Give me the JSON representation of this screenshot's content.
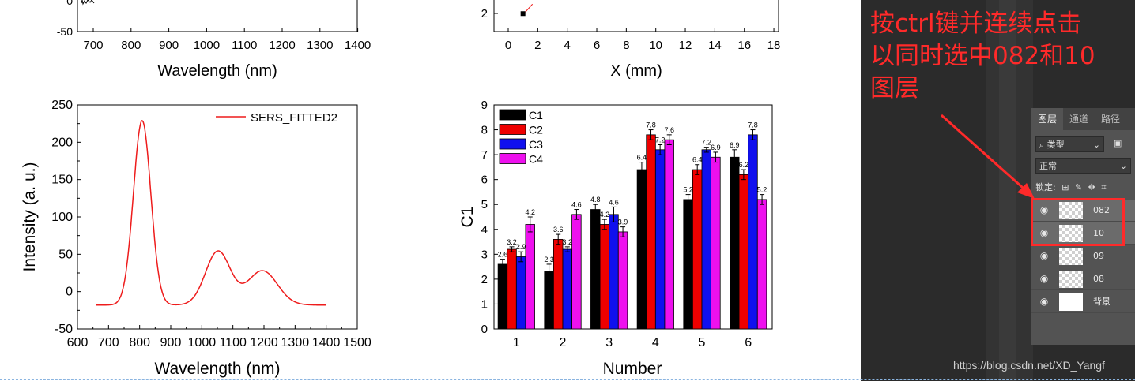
{
  "top_left_chart": {
    "yticks": [
      "0",
      "-50"
    ],
    "xticks": [
      "700",
      "800",
      "900",
      "1000",
      "1100",
      "1200",
      "1300",
      "1400"
    ],
    "xlabel": "Wavelength (nm)"
  },
  "top_right_chart": {
    "ytick": "2",
    "xticks": [
      "0",
      "2",
      "4",
      "6",
      "8",
      "10",
      "12",
      "14",
      "16",
      "18"
    ],
    "xlabel": "X (mm)",
    "point": {
      "x": 1,
      "y": 2.3
    }
  },
  "chart_data": [
    {
      "type": "line",
      "title": "",
      "xlabel": "Wavelength (nm)",
      "ylabel": "Intensity (a. u.)",
      "xlim": [
        600,
        1500
      ],
      "ylim": [
        -50,
        250
      ],
      "xticks": [
        "600",
        "700",
        "800",
        "900",
        "1000",
        "1100",
        "1200",
        "1300",
        "1400",
        "1500"
      ],
      "yticks": [
        "-50",
        "0",
        "50",
        "100",
        "150",
        "200",
        "250"
      ],
      "legend": "top-right",
      "series": [
        {
          "name": "SERS_FITTED2",
          "color": "#ee1c1c",
          "baseline": -18,
          "x_range": [
            660,
            1400
          ],
          "peaks": [
            {
              "center": 808,
              "amplitude": 247,
              "sigma": 28
            },
            {
              "center": 1052,
              "amplitude": 72,
              "sigma": 40
            },
            {
              "center": 1195,
              "amplitude": 46,
              "sigma": 48
            }
          ]
        }
      ]
    },
    {
      "type": "bar",
      "title": "",
      "xlabel": "Number",
      "ylabel": "C1",
      "ylim": [
        0,
        9
      ],
      "yticks": [
        "0",
        "1",
        "2",
        "3",
        "4",
        "5",
        "6",
        "7",
        "8",
        "9"
      ],
      "categories": [
        "1",
        "2",
        "3",
        "4",
        "5",
        "6"
      ],
      "legend": "top-left",
      "series": [
        {
          "name": "C1",
          "color": "#000000",
          "values": [
            2.6,
            2.3,
            4.8,
            6.4,
            5.2,
            6.9
          ],
          "errors": [
            0.2,
            0.3,
            0.2,
            0.3,
            0.2,
            0.3
          ],
          "labels": [
            "2.6",
            "2.3",
            "4.8",
            "6.4",
            "5.2",
            "6.9"
          ]
        },
        {
          "name": "C2",
          "color": "#ee0000",
          "values": [
            3.2,
            3.6,
            4.2,
            7.8,
            6.4,
            6.2
          ],
          "errors": [
            0.1,
            0.2,
            0.2,
            0.2,
            0.2,
            0.2
          ],
          "labels": [
            "3.2",
            "3.6",
            "4.2",
            "7.8",
            "6.4",
            "6.2"
          ]
        },
        {
          "name": "C3",
          "color": "#1010ee",
          "values": [
            2.9,
            3.2,
            4.6,
            7.2,
            7.2,
            7.8
          ],
          "errors": [
            0.2,
            0.1,
            0.3,
            0.2,
            0.1,
            0.2
          ],
          "labels": [
            "2.9",
            "3.2",
            "4.6",
            "7.2",
            "7.2",
            "7.8"
          ]
        },
        {
          "name": "C4",
          "color": "#ee10ee",
          "values": [
            4.2,
            4.6,
            3.9,
            7.6,
            6.9,
            5.2
          ],
          "errors": [
            0.3,
            0.2,
            0.2,
            0.2,
            0.2,
            0.2
          ],
          "labels": [
            "4.2",
            "4.6",
            "3.9",
            "7.6",
            "6.9",
            "5.2"
          ]
        }
      ]
    }
  ],
  "photoshop": {
    "annotation": "按ctrl键并连续点击\n以同时选中082和10\n图层",
    "tabs": [
      "图层",
      "通道",
      "路径"
    ],
    "filter_label": "类型",
    "blend_mode": "正常",
    "lock_label": "锁定:",
    "layers": [
      {
        "name": "082",
        "selected": true
      },
      {
        "name": "10",
        "selected": true
      },
      {
        "name": "09",
        "selected": false
      },
      {
        "name": "08",
        "selected": false
      },
      {
        "name": "背景",
        "selected": false
      }
    ],
    "watermark": "https://blog.csdn.net/XD_Yangf",
    "annotation_color": "#ff2a2a"
  }
}
